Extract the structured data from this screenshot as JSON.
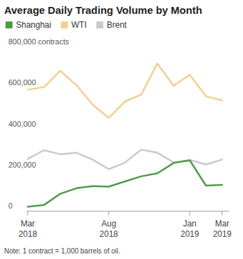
{
  "chart_data": {
    "type": "line",
    "title": "Average Daily Trading Volume by Month",
    "categories": [
      "Mar 2018",
      null,
      null,
      null,
      null,
      "Aug 2018",
      null,
      null,
      null,
      null,
      "Jan 2019",
      null,
      "Mar 2019"
    ],
    "series": [
      {
        "name": "Shanghai",
        "color": "#4f9a48",
        "values": [
          22000,
          30000,
          85000,
          112000,
          122000,
          120000,
          145000,
          170000,
          185000,
          235000,
          248000,
          125000,
          128000
        ]
      },
      {
        "name": "WTI",
        "color": "#f3cf8e",
        "values": [
          592000,
          605000,
          685000,
          615000,
          520000,
          455000,
          535000,
          568000,
          720000,
          612000,
          665000,
          560000,
          540000
        ]
      },
      {
        "name": "Brent",
        "color": "#c9c9c9",
        "values": [
          255000,
          297000,
          278000,
          285000,
          252000,
          205000,
          237000,
          300000,
          285000,
          238000,
          250000,
          228000,
          252000
        ]
      }
    ],
    "ylim": [
      0,
      800000
    ],
    "yticks": [
      0,
      {
        "value": 200000,
        "label": "200,000"
      },
      {
        "value": 400000,
        "label": "400,000"
      },
      {
        "value": 600000,
        "label": "600,000"
      },
      {
        "value": 800000,
        "label": "800,000 contracts"
      }
    ],
    "grid": false,
    "legend": "top-left",
    "annotations": [
      "Note: 1 contract = 1,000 barrels of oil."
    ]
  }
}
